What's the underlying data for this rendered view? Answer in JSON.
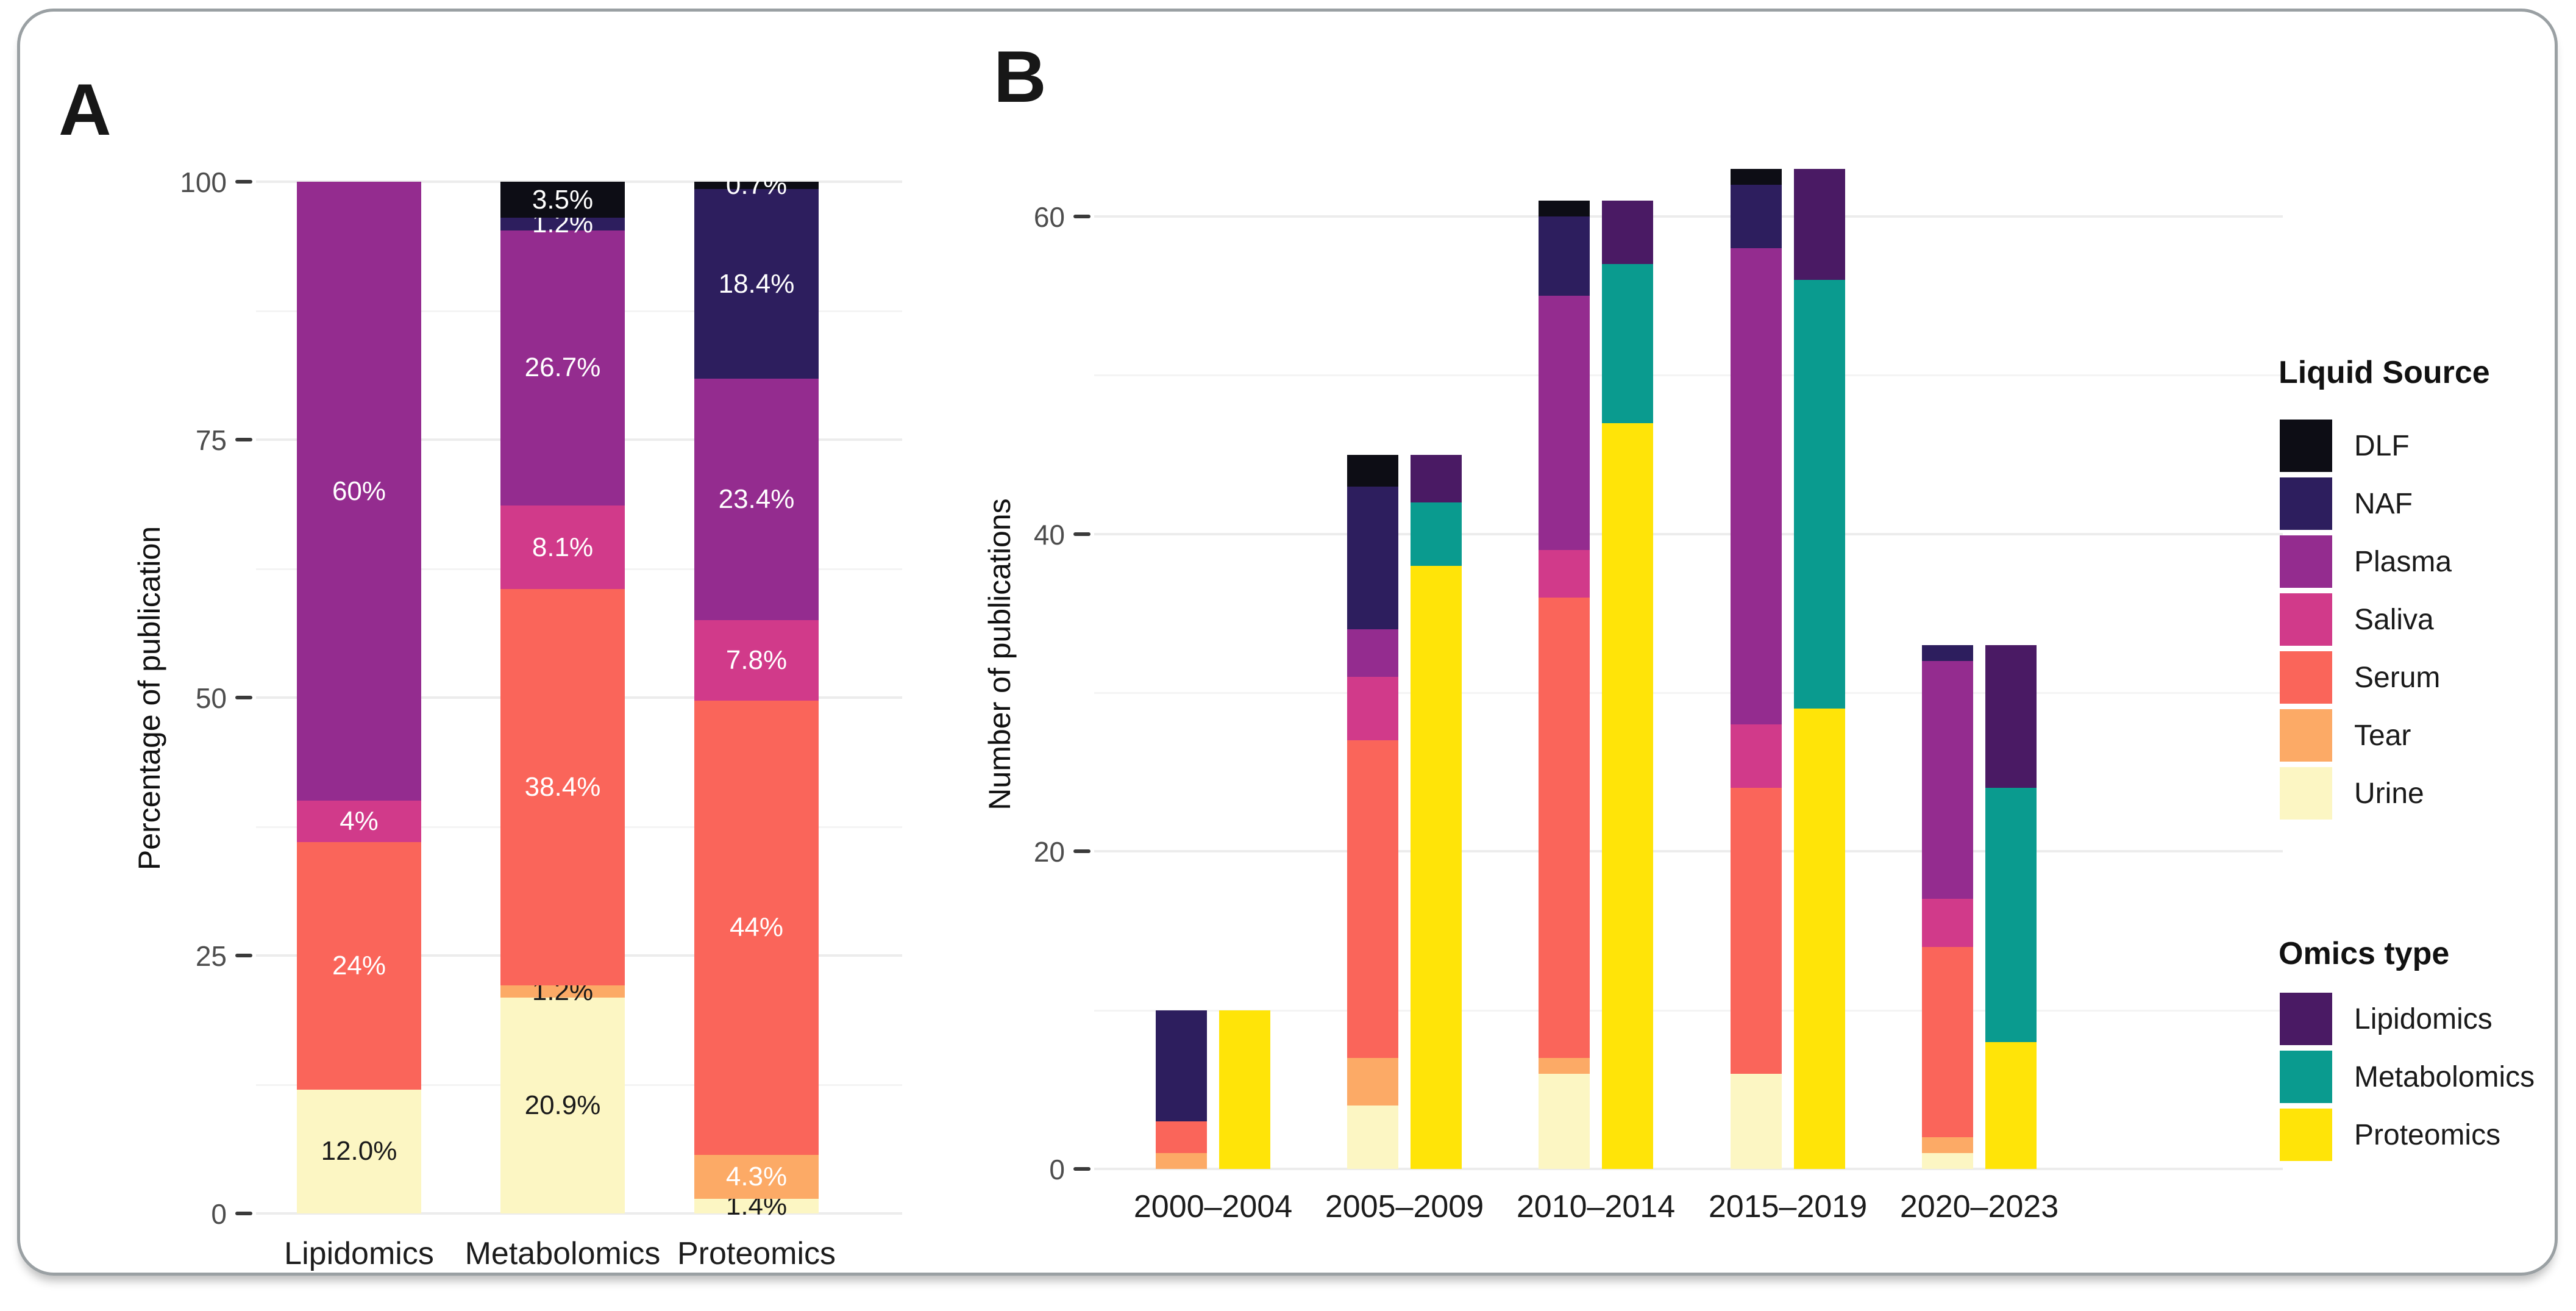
{
  "figure": {
    "panel_a_label": "A",
    "panel_b_label": "B"
  },
  "colors": {
    "series": {
      "DLF": "#0D0D15",
      "NAF": "#2D1E5E",
      "Plasma": "#942C8F",
      "Saliva": "#D13A8A",
      "Serum": "#FA655A",
      "Tear": "#FCAA66",
      "Urine": "#FCF6C3",
      "Lipidomics": "#4A1A64",
      "Metabolomics": "#0A9B8F",
      "Proteomics": "#FFE408"
    },
    "label_dark": "#1a1a1a",
    "label_light": "#ffffff",
    "grid_major": "#ececec",
    "grid_minor": "#f4f4f4",
    "tick_dash": "#3a3a3a",
    "tick_text": "#4d4d4d",
    "frame_border": "#9aa0a3"
  },
  "chart_data": [
    {
      "type": "bar",
      "subtype": "percent-stacked",
      "ylabel": "Percentage of publication",
      "xlabel": "",
      "ylim": [
        0,
        100
      ],
      "yticks": {
        "values": [
          0,
          25,
          50,
          75,
          100
        ],
        "labels": [
          "0",
          "25",
          "50",
          "75",
          "100"
        ]
      },
      "yticks_minor": [
        12.5,
        37.5,
        62.5,
        87.5
      ],
      "grid": true,
      "stack_order_bottom_to_top": [
        "Urine",
        "Tear",
        "Serum",
        "Saliva",
        "Plasma",
        "NAF",
        "DLF"
      ],
      "categories": [
        "Lipidomics",
        "Metabolomics",
        "Proteomics"
      ],
      "bars": [
        {
          "category": "Lipidomics",
          "segments": [
            {
              "name": "Urine",
              "value": 12.0,
              "label": "12.0%",
              "label_style": "dark"
            },
            {
              "name": "Serum",
              "value": 24.0,
              "label": "24%",
              "label_style": "light"
            },
            {
              "name": "Saliva",
              "value": 4.0,
              "label": "4%",
              "label_style": "light"
            },
            {
              "name": "Plasma",
              "value": 60.0,
              "label": "60%",
              "label_style": "light"
            }
          ]
        },
        {
          "category": "Metabolomics",
          "segments": [
            {
              "name": "Urine",
              "value": 20.9,
              "label": "20.9%",
              "label_style": "dark"
            },
            {
              "name": "Tear",
              "value": 1.2,
              "label": "1.2%",
              "label_style": "dark"
            },
            {
              "name": "Serum",
              "value": 38.4,
              "label": "38.4%",
              "label_style": "light"
            },
            {
              "name": "Saliva",
              "value": 8.1,
              "label": "8.1%",
              "label_style": "light"
            },
            {
              "name": "Plasma",
              "value": 26.7,
              "label": "26.7%",
              "label_style": "light"
            },
            {
              "name": "NAF",
              "value": 1.2,
              "label": "1.2%",
              "label_style": "light"
            },
            {
              "name": "DLF",
              "value": 3.5,
              "label": "3.5%",
              "label_style": "light"
            }
          ]
        },
        {
          "category": "Proteomics",
          "segments": [
            {
              "name": "Urine",
              "value": 1.4,
              "label": "1.4%",
              "label_style": "dark"
            },
            {
              "name": "Tear",
              "value": 4.3,
              "label": "4.3%",
              "label_style": "light"
            },
            {
              "name": "Serum",
              "value": 44.0,
              "label": "44%",
              "label_style": "light"
            },
            {
              "name": "Saliva",
              "value": 7.8,
              "label": "7.8%",
              "label_style": "light"
            },
            {
              "name": "Plasma",
              "value": 23.4,
              "label": "23.4%",
              "label_style": "light"
            },
            {
              "name": "NAF",
              "value": 18.4,
              "label": "18.4%",
              "label_style": "light"
            },
            {
              "name": "DLF",
              "value": 0.7,
              "label": "0.7%",
              "label_style": "light"
            }
          ]
        }
      ]
    },
    {
      "type": "bar",
      "subtype": "grouped-stacked",
      "ylabel": "Number of publications",
      "xlabel": "",
      "ylim": [
        0,
        65
      ],
      "yticks": {
        "values": [
          0,
          20,
          40,
          60
        ],
        "labels": [
          "0",
          "20",
          "40",
          "60"
        ]
      },
      "yticks_minor": [
        10,
        30,
        50
      ],
      "grid": true,
      "liquid_stack_order_bottom_to_top": [
        "Urine",
        "Tear",
        "Serum",
        "Saliva",
        "Plasma",
        "NAF",
        "DLF"
      ],
      "omics_stack_order_bottom_to_top": [
        "Proteomics",
        "Metabolomics",
        "Lipidomics"
      ],
      "groups": [
        {
          "label": "2000–2004",
          "liquid": {
            "Urine": 0,
            "Tear": 1,
            "Serum": 2,
            "Saliva": 0,
            "Plasma": 0,
            "NAF": 7,
            "DLF": 0
          },
          "omics": {
            "Proteomics": 10,
            "Metabolomics": 0,
            "Lipidomics": 0
          }
        },
        {
          "label": "2005–2009",
          "liquid": {
            "Urine": 4,
            "Tear": 3,
            "Serum": 20,
            "Saliva": 4,
            "Plasma": 3,
            "NAF": 9,
            "DLF": 2
          },
          "omics": {
            "Proteomics": 38,
            "Metabolomics": 4,
            "Lipidomics": 3
          }
        },
        {
          "label": "2010–2014",
          "liquid": {
            "Urine": 6,
            "Tear": 1,
            "Serum": 29,
            "Saliva": 3,
            "Plasma": 16,
            "NAF": 5,
            "DLF": 1
          },
          "omics": {
            "Proteomics": 47,
            "Metabolomics": 10,
            "Lipidomics": 4
          }
        },
        {
          "label": "2015–2019",
          "liquid": {
            "Urine": 6,
            "Tear": 0,
            "Serum": 18,
            "Saliva": 4,
            "Plasma": 30,
            "NAF": 4,
            "DLF": 1
          },
          "omics": {
            "Proteomics": 29,
            "Metabolomics": 27,
            "Lipidomics": 7
          }
        },
        {
          "label": "2020–2023",
          "liquid": {
            "Urine": 1,
            "Tear": 1,
            "Serum": 12,
            "Saliva": 3,
            "Plasma": 15,
            "NAF": 1,
            "DLF": 0
          },
          "omics": {
            "Proteomics": 8,
            "Metabolomics": 16,
            "Lipidomics": 9
          }
        }
      ]
    }
  ],
  "legend": {
    "liquid": {
      "title": "Liquid Source",
      "items": [
        {
          "label": "DLF"
        },
        {
          "label": "NAF"
        },
        {
          "label": "Plasma"
        },
        {
          "label": "Saliva"
        },
        {
          "label": "Serum"
        },
        {
          "label": "Tear"
        },
        {
          "label": "Urine"
        }
      ]
    },
    "omics": {
      "title": "Omics type",
      "items": [
        {
          "label": "Lipidomics"
        },
        {
          "label": "Metabolomics"
        },
        {
          "label": "Proteomics"
        }
      ]
    }
  }
}
